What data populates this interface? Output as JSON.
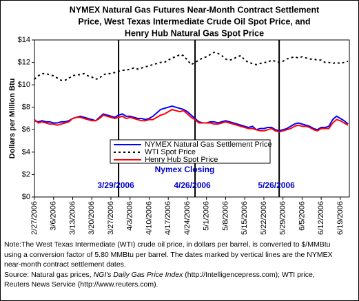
{
  "chart_data": {
    "type": "line",
    "title": [
      "NYMEX Natural Gas Futures Near-Month Contract Settlement",
      "Price, West Texas Intermediate Crude Oil Spot Price, and",
      "Henry Hub Natural Gas Spot Price"
    ],
    "y_label": "Dollars per Million Btu",
    "categories": [
      "2/27/2006",
      null,
      null,
      null,
      null,
      "3/6/2006",
      null,
      null,
      null,
      null,
      "3/13/2006",
      null,
      null,
      null,
      null,
      "3/20/2006",
      null,
      null,
      null,
      null,
      "3/27/2006",
      null,
      null,
      null,
      null,
      "4/3/2006",
      null,
      null,
      null,
      null,
      "4/10/2006",
      null,
      null,
      null,
      null,
      "4/17/2006",
      null,
      null,
      null,
      null,
      "4/24/2006",
      null,
      null,
      null,
      null,
      "5/1/2006",
      null,
      null,
      null,
      null,
      "5/8/2006",
      null,
      null,
      null,
      null,
      "5/15/2006",
      null,
      null,
      null,
      null,
      "5/22/2006",
      null,
      null,
      null,
      null,
      "5/29/2006",
      null,
      null,
      null,
      null,
      "6/5/2006",
      null,
      null,
      null,
      null,
      "6/12/2006",
      null,
      null,
      null,
      null,
      "6/19/2006",
      null,
      null
    ],
    "series": [
      {
        "name": "NYMEX Natural Gas Settlement Price",
        "color": "#0000ff",
        "linestyle": "solid",
        "values": [
          6.8,
          6.7,
          6.8,
          6.7,
          6.7,
          6.6,
          6.6,
          6.7,
          6.7,
          6.8,
          7.0,
          7.1,
          7.2,
          7.1,
          7.0,
          6.9,
          6.8,
          7.1,
          7.4,
          7.3,
          7.2,
          7.1,
          7.3,
          7.4,
          7.2,
          7.2,
          7.1,
          7.0,
          7.0,
          6.9,
          7.0,
          7.2,
          7.5,
          7.8,
          7.9,
          8.0,
          8.1,
          8.0,
          7.9,
          7.8,
          7.6,
          7.3,
          7.0,
          6.7,
          6.6,
          6.6,
          6.7,
          6.7,
          6.6,
          6.7,
          6.8,
          6.7,
          6.6,
          6.5,
          6.4,
          6.3,
          6.2,
          6.3,
          6.0,
          6.1,
          6.1,
          6.2,
          6.2,
          6.0,
          5.9,
          6.0,
          6.1,
          6.3,
          6.5,
          6.6,
          6.5,
          6.4,
          6.3,
          6.1,
          6.0,
          6.2,
          6.2,
          6.3,
          6.9,
          7.2,
          7.0,
          6.8,
          6.5
        ]
      },
      {
        "name": "WTI Spot Price",
        "color": "#000000",
        "linestyle": "dashed",
        "values": [
          10.5,
          10.8,
          11.0,
          11.0,
          10.9,
          10.8,
          10.6,
          10.4,
          10.4,
          10.6,
          10.8,
          10.9,
          10.9,
          11.0,
          10.8,
          10.7,
          10.5,
          10.6,
          10.9,
          11.0,
          11.0,
          11.1,
          11.2,
          11.3,
          11.3,
          11.4,
          11.5,
          11.4,
          11.5,
          11.6,
          11.7,
          11.8,
          11.9,
          12.0,
          12.0,
          12.2,
          12.4,
          12.5,
          12.7,
          12.6,
          12.2,
          11.8,
          12.0,
          12.2,
          12.4,
          12.5,
          12.7,
          12.9,
          12.8,
          12.6,
          12.3,
          12.2,
          12.3,
          12.5,
          12.6,
          12.2,
          12.0,
          11.9,
          11.8,
          11.9,
          12.0,
          12.0,
          12.2,
          12.1,
          12.0,
          12.1,
          12.3,
          12.4,
          12.5,
          12.4,
          12.5,
          12.4,
          12.3,
          12.3,
          12.2,
          12.2,
          12.0,
          12.0,
          11.9,
          12.0,
          11.9,
          12.0,
          12.1
        ]
      },
      {
        "name": "Henry Hub Spot Price",
        "color": "#ff0000",
        "linestyle": "solid",
        "values": [
          6.9,
          6.6,
          6.7,
          6.6,
          6.5,
          6.5,
          6.4,
          6.5,
          6.6,
          6.7,
          7.0,
          7.1,
          7.1,
          7.0,
          6.9,
          6.8,
          6.8,
          7.0,
          7.3,
          7.2,
          7.1,
          7.0,
          7.1,
          7.2,
          7.0,
          7.1,
          7.0,
          6.9,
          6.8,
          6.8,
          6.9,
          6.9,
          7.1,
          7.3,
          7.4,
          7.6,
          7.8,
          7.7,
          7.6,
          7.7,
          7.4,
          7.1,
          6.9,
          6.6,
          6.6,
          6.6,
          6.6,
          6.5,
          6.5,
          6.6,
          6.7,
          6.6,
          6.5,
          6.4,
          6.3,
          6.2,
          6.1,
          6.1,
          6.0,
          5.9,
          5.9,
          6.0,
          6.1,
          5.9,
          5.8,
          5.9,
          6.0,
          6.1,
          6.3,
          6.4,
          6.3,
          6.3,
          6.2,
          6.0,
          5.9,
          6.1,
          6.1,
          6.1,
          6.6,
          6.9,
          6.8,
          6.6,
          6.4
        ]
      }
    ],
    "ylim": [
      0,
      14
    ],
    "yticks": [
      {
        "value": 0,
        "label": "$0"
      },
      {
        "value": 2,
        "label": "$2"
      },
      {
        "value": 4,
        "label": "$4"
      },
      {
        "value": 6,
        "label": "$6"
      },
      {
        "value": 8,
        "label": "$8"
      },
      {
        "value": 10,
        "label": "$10"
      },
      {
        "value": 12,
        "label": "$12"
      },
      {
        "value": 14,
        "label": "$14"
      }
    ],
    "grid": false,
    "vertical_lines": [
      "3/29/2006",
      "4/26/2006",
      "5/26/2006"
    ],
    "annotation": "Nymex Closing",
    "notes": [
      "Note:The West Texas Intermediate (WTI) crude oil price, in dollars per barrel,  is converted to $/MMBtu",
      "using a conversion factor of 5.80 MMBtu per barrel.  The dates marked by vertical lines are the NYMEX",
      "near-month contract settlement dates."
    ],
    "source": [
      "Source: Natural gas prices, ",
      "NGI's Daily Gas Price Index",
      " (http://Intelligencepress.com); WTI price,"
    ],
    "source_line2": "Reuters News Service (http://www.reuters.com)."
  }
}
